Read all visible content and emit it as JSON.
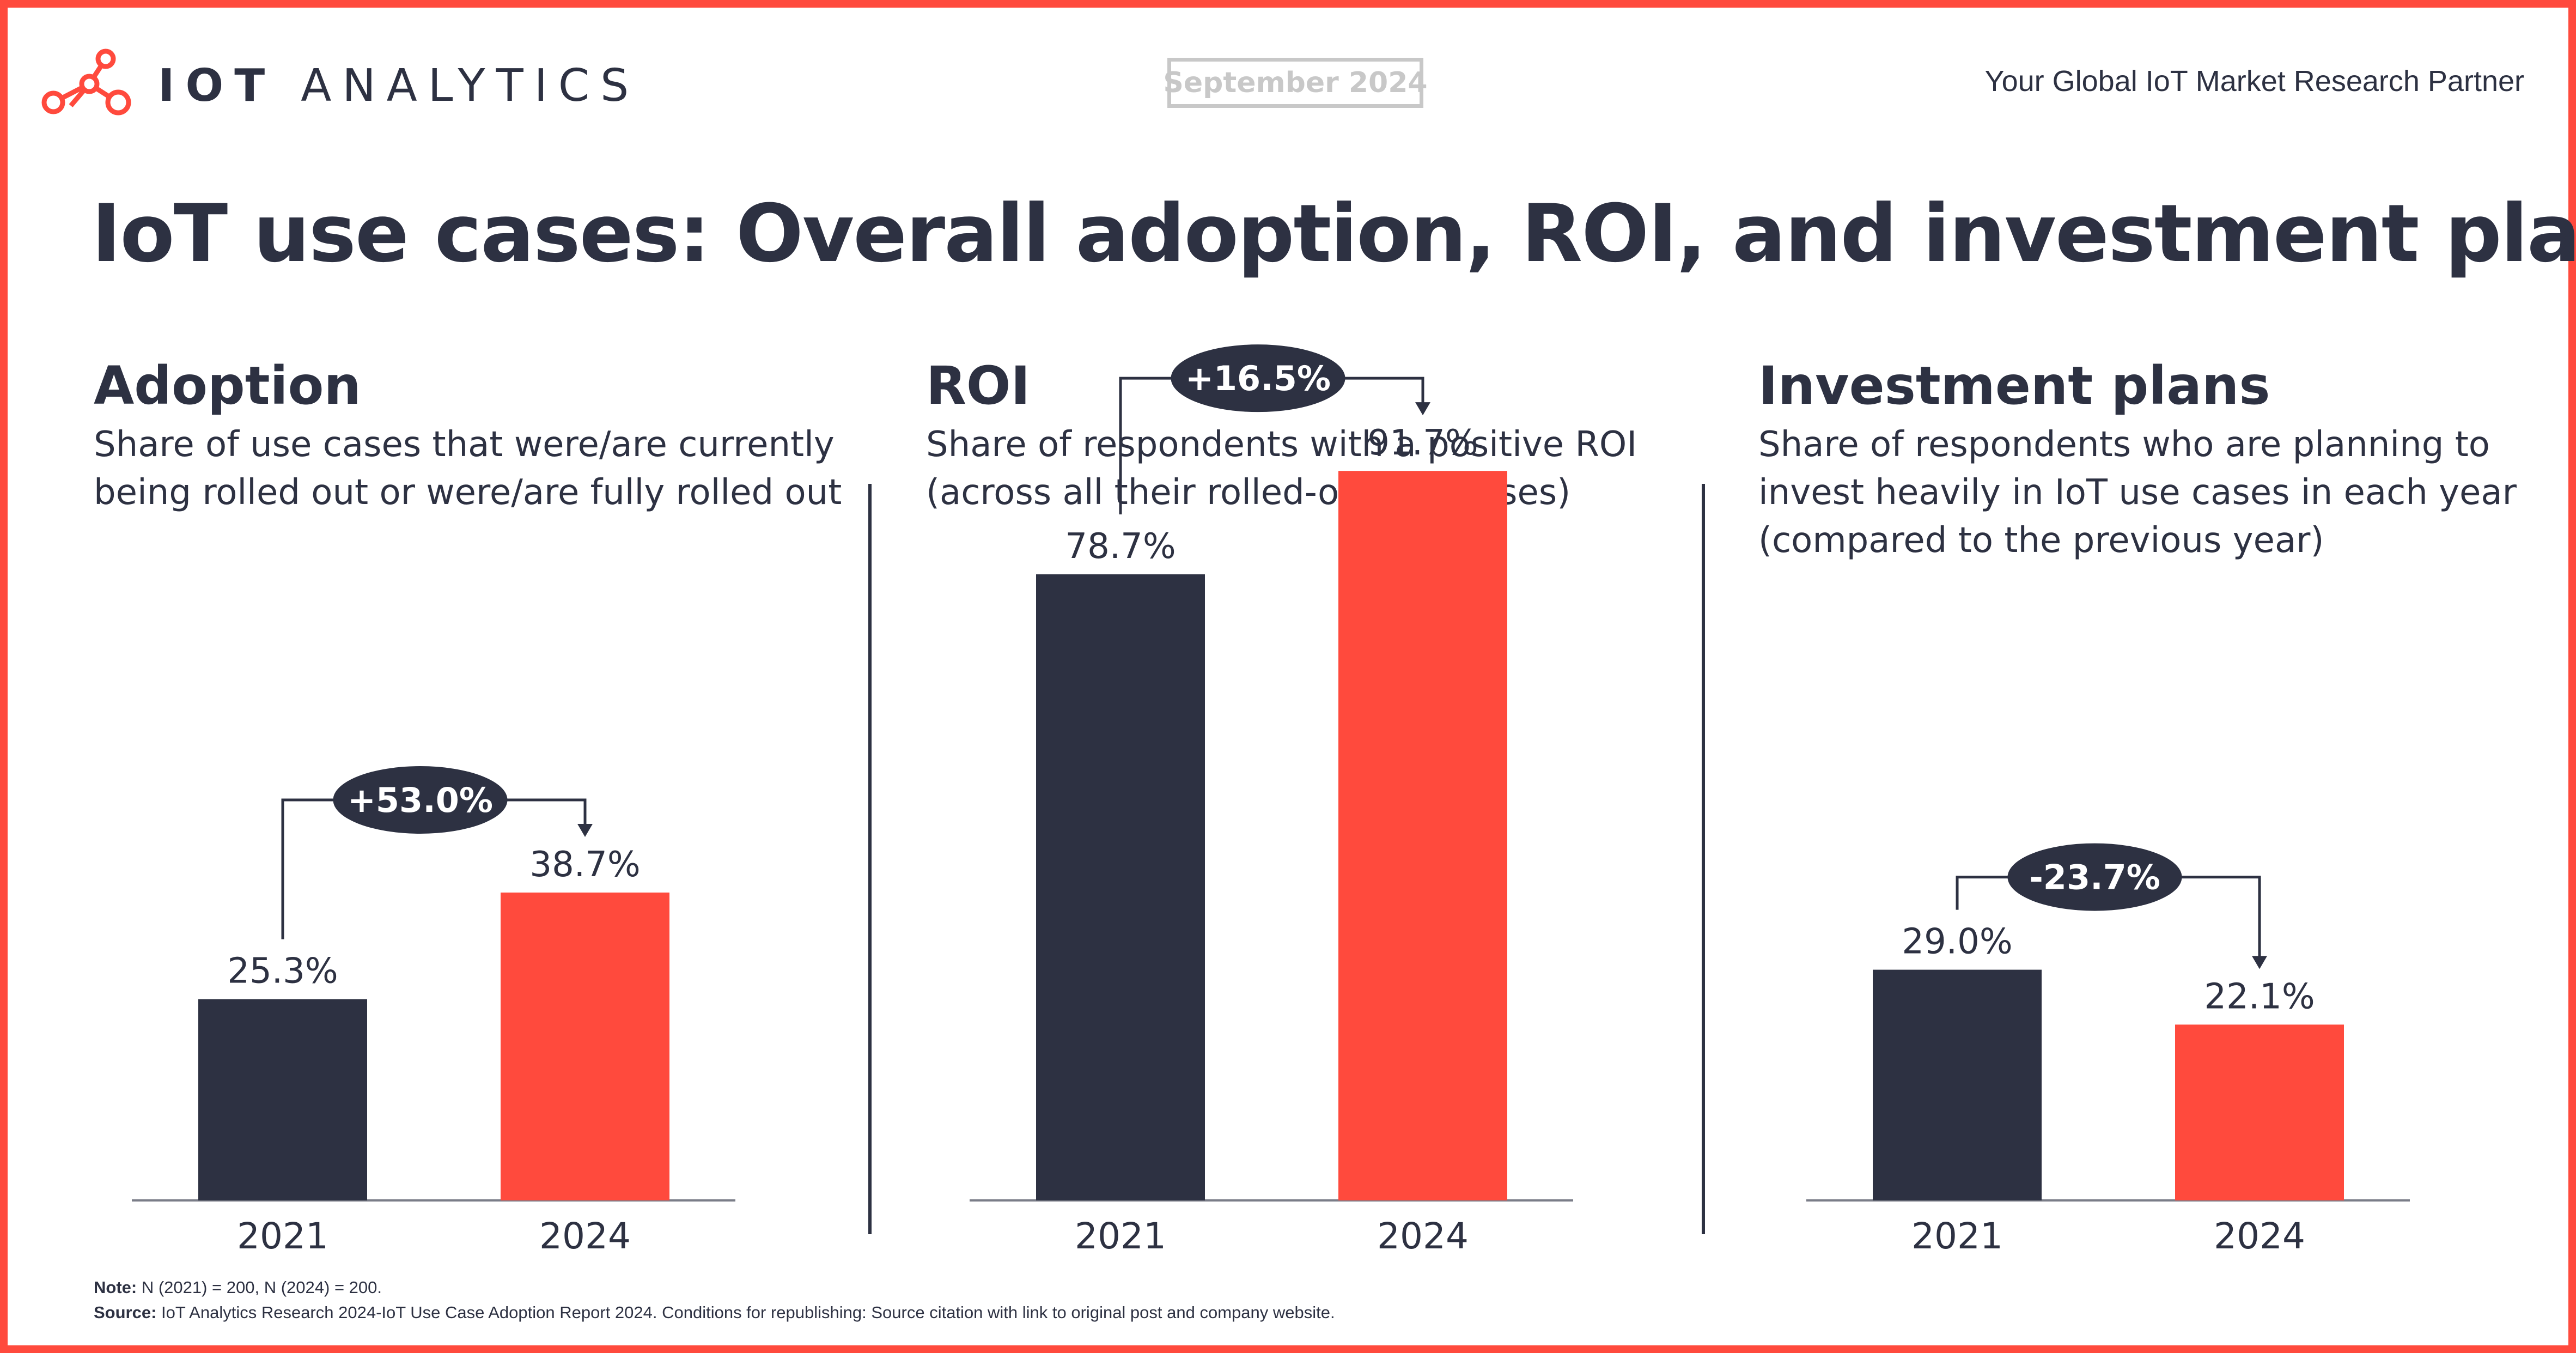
{
  "header": {
    "brand_bold": "IOT",
    "brand_light": "ANALYTICS",
    "date": "September 2024",
    "tagline": "Your Global IoT Market Research Partner"
  },
  "title": "IoT use cases: Overall adoption, ROI, and investment plans",
  "colors": {
    "accent": "#ff4a3d",
    "dark": "#2d3142",
    "frame": "#ff4a3d",
    "badge_border": "#c8c8c8"
  },
  "panels": [
    {
      "title": "Adoption",
      "subtitle": "Share of use cases that were/are currently\nbeing rolled out or were/are fully rolled out"
    },
    {
      "title": "ROI",
      "subtitle": "Share of respondents with a positive ROI\n(across all their rolled-out use cases)"
    },
    {
      "title": "Investment plans",
      "subtitle": "Share of respondents who are planning to\ninvest heavily in IoT use cases in each year\n(compared to the previous year)"
    }
  ],
  "chart_data": [
    {
      "type": "bar",
      "title": "Adoption",
      "categories": [
        "2021",
        "2024"
      ],
      "values": [
        25.3,
        38.7
      ],
      "value_labels": [
        "25.3%",
        "38.7%"
      ],
      "change_label": "+53.0%",
      "ylim": [
        0,
        100
      ]
    },
    {
      "type": "bar",
      "title": "ROI",
      "categories": [
        "2021",
        "2024"
      ],
      "values": [
        78.7,
        91.7
      ],
      "value_labels": [
        "78.7%",
        "91.7%"
      ],
      "change_label": "+16.5%",
      "ylim": [
        0,
        100
      ]
    },
    {
      "type": "bar",
      "title": "Investment plans",
      "categories": [
        "2021",
        "2024"
      ],
      "values": [
        29.0,
        22.1
      ],
      "value_labels": [
        "29.0%",
        "22.1%"
      ],
      "change_label": "-23.7%",
      "ylim": [
        0,
        100
      ]
    }
  ],
  "footer": {
    "note_label": "Note:",
    "note_text": " N (2021) = 200, N (2024) = 200.",
    "source_label": "Source:",
    "source_text": " IoT Analytics Research 2024-IoT Use Case Adoption Report 2024. Conditions for republishing: Source citation with link to original post and company website."
  }
}
